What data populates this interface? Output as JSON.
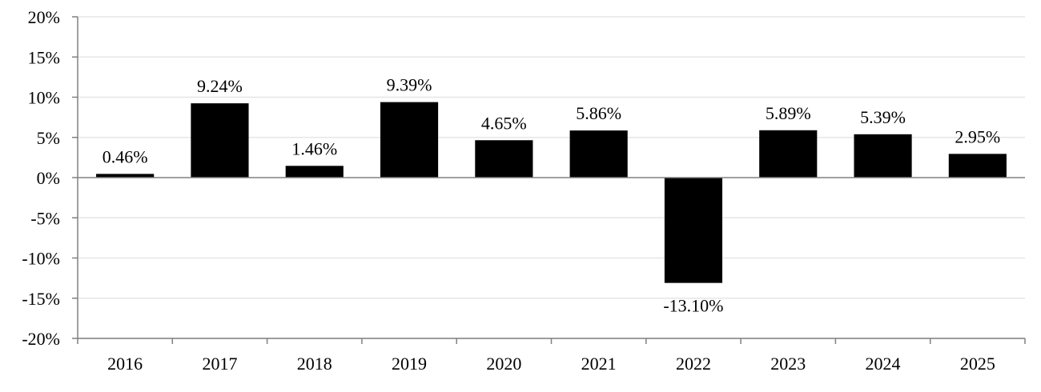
{
  "chart_data": {
    "type": "bar",
    "title": "",
    "xlabel": "",
    "ylabel": "",
    "categories": [
      "2016",
      "2017",
      "2018",
      "2019",
      "2020",
      "2021",
      "2022",
      "2023",
      "2024",
      "2025"
    ],
    "values": [
      0.46,
      9.24,
      1.46,
      9.39,
      4.65,
      5.86,
      -13.1,
      5.89,
      5.39,
      2.95
    ],
    "value_labels": [
      "0.46%",
      "9.24%",
      "1.46%",
      "9.39%",
      "4.65%",
      "5.86%",
      "-13.10%",
      "5.89%",
      "5.39%",
      "2.95%"
    ],
    "ylim": [
      -20,
      20
    ],
    "yticks": [
      20,
      15,
      10,
      5,
      0,
      -5,
      -10,
      -15,
      -20
    ],
    "ytick_labels": [
      "20%",
      "15%",
      "10%",
      "5%",
      "0%",
      "-5%",
      "-10%",
      "-15%",
      "-20%"
    ],
    "grid": true,
    "legend": "none",
    "colors": {
      "bar": "#000000",
      "grid": "#e6e6e6",
      "axis": "#808080"
    }
  }
}
